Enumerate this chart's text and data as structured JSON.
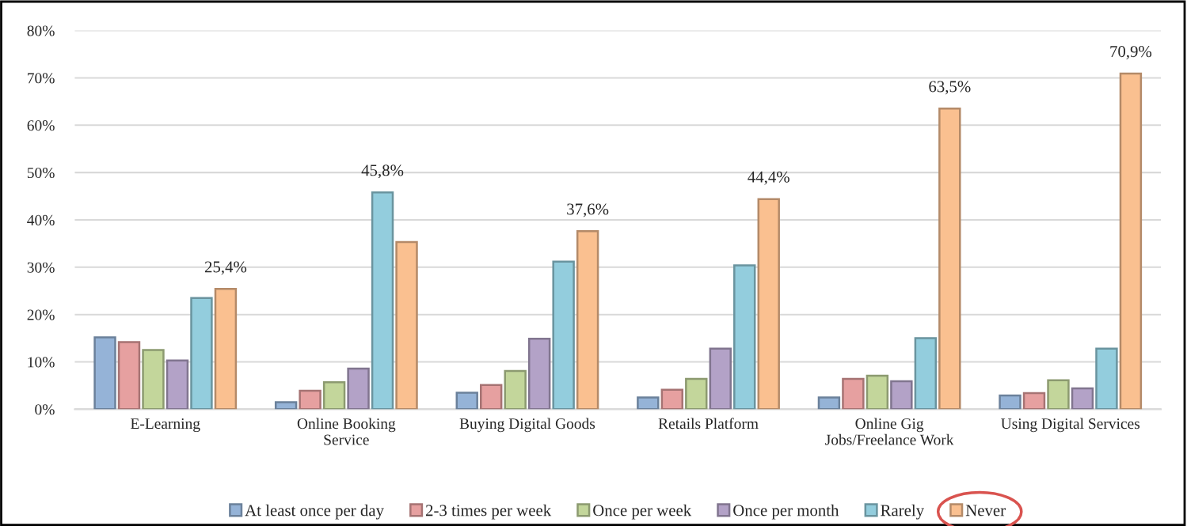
{
  "chart_data": {
    "type": "bar",
    "categories": [
      "E-Learning",
      "Online Booking\nService",
      "Buying Digital Goods",
      "Retails Platform",
      "Online Gig\nJobs/Freelance Work",
      "Using Digital Services"
    ],
    "series": [
      {
        "name": "At least once per day",
        "color": "#95b3d7",
        "values": [
          15.2,
          1.5,
          3.5,
          2.5,
          2.5,
          2.9
        ]
      },
      {
        "name": "2-3 times per week",
        "color": "#e6a0a0",
        "values": [
          14.2,
          3.9,
          5.1,
          4.1,
          6.4,
          3.4
        ]
      },
      {
        "name": "Once per week",
        "color": "#c3d69b",
        "values": [
          12.5,
          5.7,
          8.1,
          6.4,
          7.1,
          6.1
        ]
      },
      {
        "name": "Once per month",
        "color": "#b3a2c7",
        "values": [
          10.3,
          8.6,
          14.9,
          12.8,
          5.9,
          4.4
        ]
      },
      {
        "name": "Rarely",
        "color": "#93cddd",
        "values": [
          23.5,
          45.8,
          31.2,
          30.4,
          15.0,
          12.8
        ],
        "value_labels": [
          null,
          "45,8%",
          null,
          null,
          null,
          null
        ]
      },
      {
        "name": "Never",
        "color": "#fac090",
        "values": [
          25.4,
          35.3,
          37.6,
          44.4,
          63.5,
          70.9
        ],
        "value_labels": [
          "25,4%",
          null,
          "37,6%",
          "44,4%",
          "63,5%",
          "70,9%"
        ]
      }
    ],
    "ylim": [
      0,
      80
    ],
    "yticks": [
      {
        "value": 0,
        "label": "0%"
      },
      {
        "value": 10,
        "label": "10%"
      },
      {
        "value": 20,
        "label": "20%"
      },
      {
        "value": 30,
        "label": "30%"
      },
      {
        "value": 40,
        "label": "40%"
      },
      {
        "value": 50,
        "label": "50%"
      },
      {
        "value": 60,
        "label": "60%"
      },
      {
        "value": 70,
        "label": "70%"
      },
      {
        "value": 80,
        "label": "80%"
      }
    ],
    "grid": "y",
    "legend": "bottom"
  }
}
